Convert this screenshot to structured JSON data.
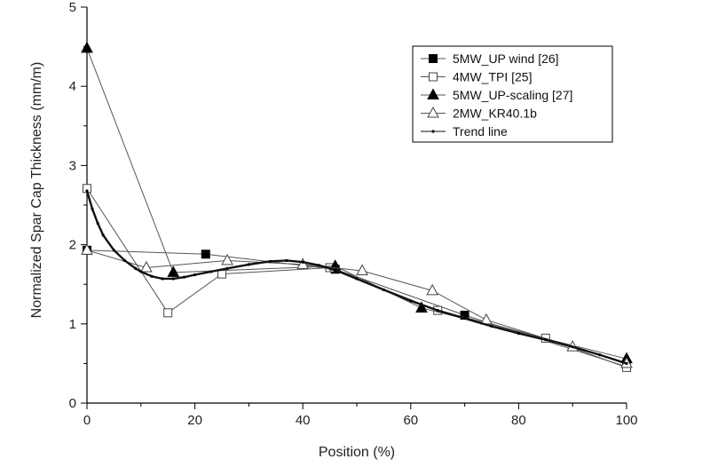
{
  "chart_data": {
    "type": "line",
    "xlabel": "Position (%)",
    "ylabel": "Normalized Spar Cap Thickness (mm/m)",
    "xlim": [
      0,
      100
    ],
    "ylim": [
      0,
      5
    ],
    "xticks": [
      0,
      20,
      40,
      60,
      80,
      100
    ],
    "yticks": [
      0,
      1,
      2,
      3,
      4,
      5
    ],
    "grid": false,
    "legend_position": "top-right",
    "series": [
      {
        "name": "5MW_UP wind [26]",
        "marker": "square-filled",
        "x": [
          0,
          22,
          46,
          70,
          100
        ],
        "y": [
          1.93,
          1.88,
          1.69,
          1.11,
          0.46
        ]
      },
      {
        "name": "4MW_TPI  [25]",
        "marker": "square-open",
        "x": [
          0,
          15,
          25,
          45,
          65,
          85,
          100
        ],
        "y": [
          2.71,
          1.14,
          1.63,
          1.71,
          1.17,
          0.82,
          0.45
        ]
      },
      {
        "name": "5MW_UP-scaling [27]",
        "marker": "triangle-filled",
        "x": [
          0,
          16,
          46,
          62,
          100
        ],
        "y": [
          4.48,
          1.65,
          1.73,
          1.2,
          0.56
        ]
      },
      {
        "name": "2MW_KR40.1b",
        "marker": "triangle-open",
        "x": [
          0,
          11,
          26,
          40,
          51,
          64,
          74,
          90,
          100
        ],
        "y": [
          1.93,
          1.71,
          1.8,
          1.75,
          1.67,
          1.42,
          1.05,
          0.71,
          0.5
        ]
      },
      {
        "name": "Trend line",
        "marker": "dot",
        "x": [
          0,
          1,
          2,
          3,
          5,
          7,
          9,
          10,
          12,
          14,
          16,
          18,
          20,
          23,
          26,
          30,
          34,
          37,
          40,
          43,
          46,
          50,
          55,
          60,
          65,
          70,
          75,
          80,
          85,
          90,
          95,
          100
        ],
        "y": [
          2.68,
          2.45,
          2.27,
          2.12,
          1.93,
          1.8,
          1.7,
          1.66,
          1.6,
          1.57,
          1.57,
          1.59,
          1.62,
          1.66,
          1.7,
          1.75,
          1.79,
          1.8,
          1.78,
          1.74,
          1.68,
          1.57,
          1.43,
          1.29,
          1.17,
          1.07,
          0.97,
          0.88,
          0.8,
          0.71,
          0.61,
          0.5
        ]
      }
    ]
  }
}
